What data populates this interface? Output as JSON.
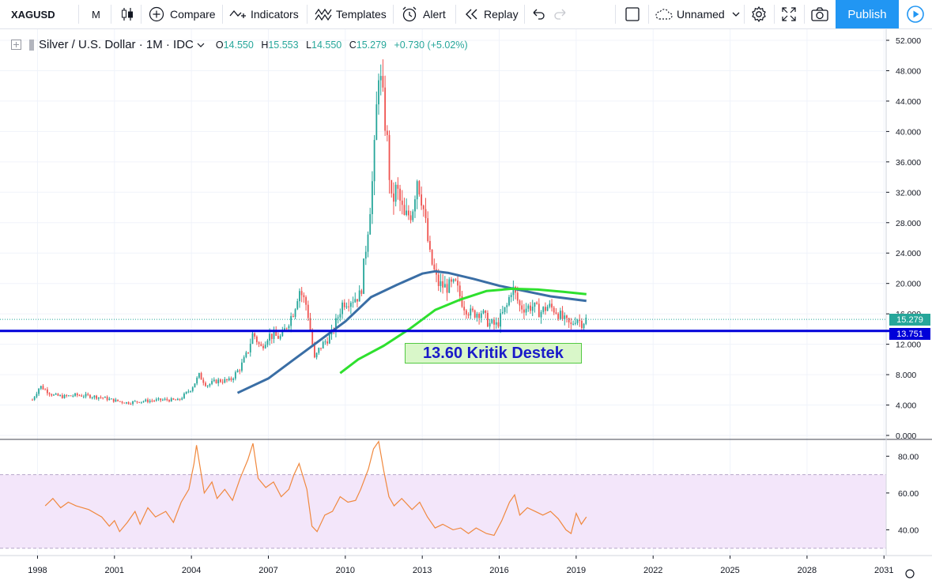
{
  "toolbar": {
    "symbol": "XAGUSD",
    "interval": "M",
    "compare": "Compare",
    "indicators": "Indicators",
    "templates": "Templates",
    "alert": "Alert",
    "replay": "Replay",
    "layout_name": "Unnamed",
    "publish": "Publish",
    "icons": [
      "bars-icon",
      "plus-circle-icon",
      "indicators-icon",
      "templates-icon",
      "alarm-icon",
      "replay-icon",
      "undo-icon",
      "redo-icon",
      "square-icon",
      "cloud-icon",
      "gear-icon",
      "fullscreen-icon",
      "camera-icon",
      "play-icon"
    ]
  },
  "legend": {
    "title": "Silver / U.S. Dollar · 1M · IDC",
    "open_label": "O",
    "open": "14.550",
    "high_label": "H",
    "high": "15.553",
    "low_label": "L",
    "low": "14.550",
    "close_label": "C",
    "close": "15.279",
    "change": "+0.730 (+5.02%)"
  },
  "annotation": "13.60 Kritik Destek",
  "price_labels": {
    "last": "15.279",
    "line": "13.751"
  },
  "colors": {
    "up": "#26a69a",
    "down": "#ef5350",
    "line": "#0000d9",
    "ma_blue": "#3a6ea5",
    "ma_green": "#2ee02e",
    "rsi": "#f0883e",
    "rsi_band": "#f3e6fa",
    "accent": "#2196f3"
  },
  "chart_data": [
    {
      "type": "candlestick",
      "title": "Silver / U.S. Dollar · 1M · IDC",
      "x_ticks": [
        "1998",
        "2001",
        "2004",
        "2007",
        "2010",
        "2013",
        "2016",
        "2019",
        "2022",
        "2025",
        "2028",
        "2031"
      ],
      "y_ticks": [
        "52.000",
        "48.000",
        "44.000",
        "40.000",
        "36.000",
        "32.000",
        "28.000",
        "24.000",
        "20.000",
        "16.000",
        "12.000",
        "8.000",
        "4.000",
        "0.000"
      ],
      "ylim": [
        0,
        52
      ],
      "xlim": [
        1997.0,
        2030.9
      ],
      "close_series": [
        [
          1997.8,
          4.7
        ],
        [
          1998.1,
          6.5
        ],
        [
          1998.6,
          5.3
        ],
        [
          1999.0,
          5.1
        ],
        [
          1999.5,
          5.3
        ],
        [
          2000.0,
          5.2
        ],
        [
          2000.5,
          5.0
        ],
        [
          2001.0,
          4.6
        ],
        [
          2001.5,
          4.3
        ],
        [
          2002.0,
          4.5
        ],
        [
          2002.5,
          4.6
        ],
        [
          2003.0,
          4.7
        ],
        [
          2003.5,
          4.6
        ],
        [
          2004.0,
          6.2
        ],
        [
          2004.3,
          7.9
        ],
        [
          2004.6,
          6.6
        ],
        [
          2005.0,
          7.2
        ],
        [
          2005.5,
          7.2
        ],
        [
          2005.9,
          8.9
        ],
        [
          2006.2,
          11.0
        ],
        [
          2006.4,
          13.5
        ],
        [
          2006.7,
          11.5
        ],
        [
          2007.0,
          13.2
        ],
        [
          2007.5,
          12.9
        ],
        [
          2008.0,
          16.5
        ],
        [
          2008.2,
          19.3
        ],
        [
          2008.5,
          17.0
        ],
        [
          2008.8,
          10.0
        ],
        [
          2009.0,
          11.5
        ],
        [
          2009.5,
          13.5
        ],
        [
          2009.9,
          17.5
        ],
        [
          2010.3,
          18.0
        ],
        [
          2010.6,
          18.5
        ],
        [
          2010.9,
          28.0
        ],
        [
          2011.1,
          35.0
        ],
        [
          2011.3,
          48.5
        ],
        [
          2011.6,
          40.0
        ],
        [
          2011.8,
          30.5
        ],
        [
          2012.0,
          32.5
        ],
        [
          2012.3,
          28.5
        ],
        [
          2012.6,
          29.5
        ],
        [
          2012.8,
          34.0
        ],
        [
          2013.0,
          31.0
        ],
        [
          2013.3,
          23.5
        ],
        [
          2013.6,
          20.0
        ],
        [
          2013.9,
          19.5
        ],
        [
          2014.3,
          19.8
        ],
        [
          2014.6,
          17.2
        ],
        [
          2014.9,
          16.0
        ],
        [
          2015.3,
          16.3
        ],
        [
          2015.6,
          14.7
        ],
        [
          2015.9,
          14.5
        ],
        [
          2016.3,
          17.0
        ],
        [
          2016.5,
          19.6
        ],
        [
          2016.8,
          17.0
        ],
        [
          2017.0,
          16.8
        ],
        [
          2017.3,
          17.0
        ],
        [
          2017.6,
          16.2
        ],
        [
          2017.9,
          17.0
        ],
        [
          2018.2,
          16.5
        ],
        [
          2018.5,
          15.2
        ],
        [
          2018.8,
          14.4
        ],
        [
          2019.0,
          15.6
        ],
        [
          2019.2,
          14.8
        ],
        [
          2019.4,
          15.3
        ]
      ],
      "last_price": 15.279,
      "horizontal_line": 13.751,
      "series": [
        {
          "values": [
            [
              2005.8,
              5.6
            ],
            [
              2007.0,
              7.5
            ],
            [
              2008.0,
              10.0
            ],
            [
              2009.0,
              12.5
            ],
            [
              2010.0,
              15.0
            ],
            [
              2011.0,
              18.2
            ],
            [
              2012.0,
              19.8
            ],
            [
              2013.0,
              21.3
            ],
            [
              2013.5,
              21.6
            ],
            [
              2014.0,
              21.4
            ],
            [
              2015.0,
              20.6
            ],
            [
              2016.0,
              19.7
            ],
            [
              2017.0,
              19.0
            ],
            [
              2018.0,
              18.3
            ],
            [
              2019.4,
              17.7
            ]
          ]
        },
        {
          "values": [
            [
              2009.8,
              8.2
            ],
            [
              2010.5,
              10.0
            ],
            [
              2011.5,
              11.8
            ],
            [
              2012.5,
              14.0
            ],
            [
              2013.5,
              16.5
            ],
            [
              2014.5,
              17.9
            ],
            [
              2015.5,
              19.0
            ],
            [
              2016.5,
              19.3
            ],
            [
              2017.5,
              19.2
            ],
            [
              2018.5,
              18.9
            ],
            [
              2019.4,
              18.6
            ]
          ]
        }
      ]
    },
    {
      "type": "line",
      "y_ticks": [
        "80.00",
        "60.00",
        "40.00"
      ],
      "ylim": [
        26,
        90
      ],
      "band": [
        30,
        70
      ],
      "values": [
        [
          1998.3,
          53
        ],
        [
          1998.6,
          57
        ],
        [
          1998.9,
          52
        ],
        [
          1999.2,
          55
        ],
        [
          1999.5,
          53
        ],
        [
          2000.0,
          51
        ],
        [
          2000.5,
          47
        ],
        [
          2000.8,
          42
        ],
        [
          2001.0,
          45
        ],
        [
          2001.2,
          39
        ],
        [
          2001.5,
          44
        ],
        [
          2001.8,
          50
        ],
        [
          2002.0,
          43
        ],
        [
          2002.3,
          52
        ],
        [
          2002.6,
          47
        ],
        [
          2003.0,
          50
        ],
        [
          2003.3,
          44
        ],
        [
          2003.6,
          55
        ],
        [
          2003.9,
          62
        ],
        [
          2004.1,
          76
        ],
        [
          2004.2,
          86
        ],
        [
          2004.5,
          60
        ],
        [
          2004.8,
          66
        ],
        [
          2005.0,
          57
        ],
        [
          2005.3,
          62
        ],
        [
          2005.6,
          56
        ],
        [
          2005.9,
          68
        ],
        [
          2006.2,
          78
        ],
        [
          2006.4,
          87
        ],
        [
          2006.6,
          68
        ],
        [
          2006.9,
          63
        ],
        [
          2007.2,
          66
        ],
        [
          2007.5,
          58
        ],
        [
          2007.8,
          62
        ],
        [
          2008.0,
          70
        ],
        [
          2008.2,
          76
        ],
        [
          2008.5,
          62
        ],
        [
          2008.7,
          42
        ],
        [
          2008.9,
          39
        ],
        [
          2009.2,
          48
        ],
        [
          2009.5,
          50
        ],
        [
          2009.8,
          58
        ],
        [
          2010.1,
          55
        ],
        [
          2010.4,
          56
        ],
        [
          2010.6,
          62
        ],
        [
          2010.9,
          73
        ],
        [
          2011.1,
          84
        ],
        [
          2011.3,
          88
        ],
        [
          2011.5,
          72
        ],
        [
          2011.7,
          58
        ],
        [
          2011.9,
          53
        ],
        [
          2012.2,
          57
        ],
        [
          2012.6,
          51
        ],
        [
          2012.9,
          55
        ],
        [
          2013.2,
          47
        ],
        [
          2013.5,
          41
        ],
        [
          2013.8,
          43
        ],
        [
          2014.2,
          40
        ],
        [
          2014.5,
          41
        ],
        [
          2014.8,
          38
        ],
        [
          2015.1,
          41
        ],
        [
          2015.5,
          38
        ],
        [
          2015.8,
          37
        ],
        [
          2016.1,
          45
        ],
        [
          2016.4,
          55
        ],
        [
          2016.6,
          59
        ],
        [
          2016.8,
          48
        ],
        [
          2017.1,
          52
        ],
        [
          2017.4,
          50
        ],
        [
          2017.7,
          48
        ],
        [
          2018.0,
          50
        ],
        [
          2018.3,
          46
        ],
        [
          2018.6,
          40
        ],
        [
          2018.8,
          38
        ],
        [
          2019.0,
          49
        ],
        [
          2019.2,
          43
        ],
        [
          2019.4,
          47
        ]
      ]
    }
  ]
}
